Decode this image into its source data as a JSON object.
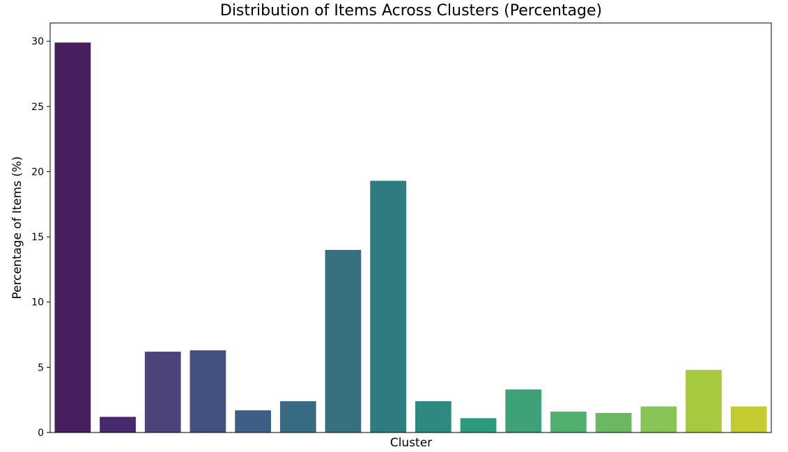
{
  "chart_data": {
    "type": "bar",
    "title": "Distribution of Items Across Clusters (Percentage)",
    "xlabel": "Cluster",
    "ylabel": "Percentage of Items (%)",
    "ylim": [
      0,
      31.4
    ],
    "yticks": [
      0,
      5,
      10,
      15,
      20,
      25,
      30
    ],
    "show_x_tick_labels": false,
    "grid": false,
    "values": [
      29.9,
      1.2,
      6.2,
      6.3,
      1.7,
      2.4,
      14.0,
      19.3,
      2.4,
      1.1,
      3.3,
      1.6,
      1.5,
      2.0,
      4.8,
      2.0
    ],
    "colors": [
      "#481f5e",
      "#46286f",
      "#4b447b",
      "#43517f",
      "#3d5f85",
      "#386b82",
      "#36707f",
      "#2e7b80",
      "#2e8a7f",
      "#2c9a7d",
      "#3ea279",
      "#52b06e",
      "#6ab962",
      "#88c356",
      "#a6c940",
      "#c3cb2f"
    ]
  }
}
